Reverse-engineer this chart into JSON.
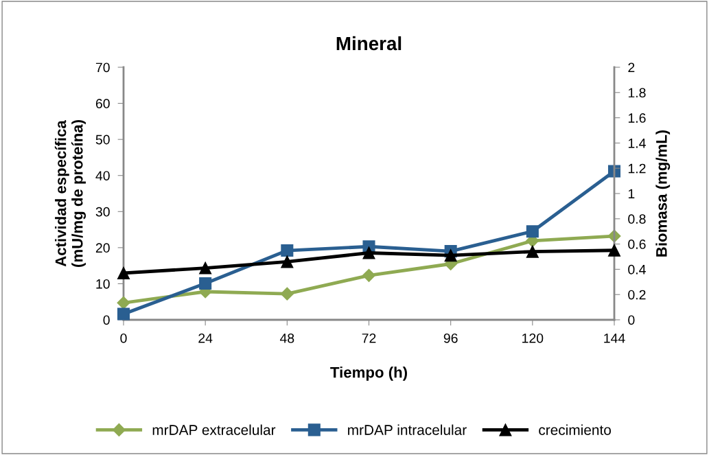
{
  "chart_data": {
    "type": "line",
    "title": "Mineral",
    "xlabel": "Tiempo (h)",
    "ylabel": "Actividad específica\n(mU/mg de proteína)",
    "y2label": "Biomasa (mg/mL)",
    "categories": [
      "0",
      "24",
      "48",
      "72",
      "96",
      "120",
      "144"
    ],
    "series": [
      {
        "name": "mrDAP extracelular",
        "color": "#8faa52",
        "marker": "diamond",
        "values": [
          4.7,
          7.8,
          7.2,
          12.3,
          15.5,
          21.9,
          23.2
        ]
      },
      {
        "name": "mrDAP intracelular",
        "color": "#2a5f91",
        "marker": "square",
        "values": [
          1.6,
          10.1,
          19.2,
          20.3,
          19.0,
          24.5,
          41.2
        ]
      },
      {
        "name": "crecimiento",
        "color": "#000000",
        "marker": "triangle",
        "axis": "y2",
        "values": [
          0.37,
          0.41,
          0.46,
          0.53,
          0.51,
          0.54,
          0.55
        ]
      }
    ],
    "ylim": [
      0,
      70
    ],
    "yticks": [
      0,
      10,
      20,
      30,
      40,
      50,
      60,
      70
    ],
    "y2lim": [
      0,
      2
    ],
    "y2ticks": [
      0,
      0.2,
      0.4,
      0.6,
      0.8,
      1,
      1.2,
      1.4,
      1.6,
      1.8,
      2
    ],
    "grid": false,
    "legend": "bottom",
    "line_style": "solid"
  }
}
